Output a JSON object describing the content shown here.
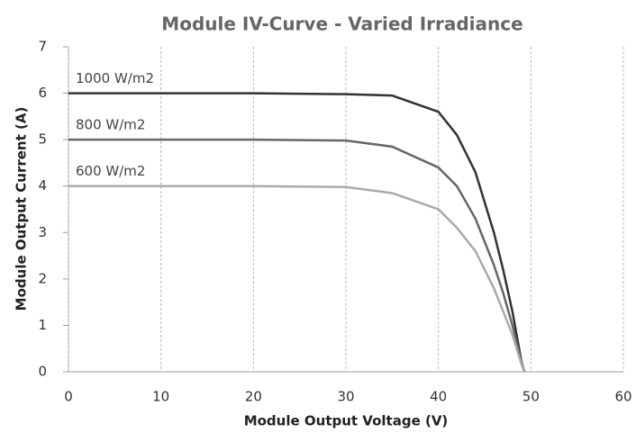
{
  "chart_data": {
    "type": "line",
    "title": "Module IV-Curve - Varied Irradiance",
    "x_label": "Module Output Voltage (V)",
    "y_label": "Module Output Current (A)",
    "x": [
      0,
      10,
      20,
      30,
      35,
      40,
      42,
      44,
      46,
      47,
      48,
      49,
      49.3
    ],
    "series": [
      {
        "name": "1000 W/m2",
        "color": "#333333",
        "values": [
          6,
          6,
          6,
          5.98,
          5.95,
          5.6,
          5.1,
          4.3,
          3.0,
          2.2,
          1.3,
          0.2,
          0
        ]
      },
      {
        "name": "800 W/m2",
        "color": "#666666",
        "values": [
          5,
          5,
          5,
          4.98,
          4.85,
          4.4,
          4.0,
          3.3,
          2.3,
          1.7,
          1.0,
          0.2,
          0
        ]
      },
      {
        "name": "600 W/m2",
        "color": "#aaaaaa",
        "values": [
          4,
          4,
          4,
          3.98,
          3.85,
          3.5,
          3.1,
          2.6,
          1.8,
          1.3,
          0.8,
          0.15,
          0
        ]
      }
    ],
    "xlim": [
      0,
      60
    ],
    "xticks": [
      0,
      10,
      20,
      30,
      40,
      50,
      60
    ],
    "ylim": [
      0,
      7
    ],
    "yticks": [
      0,
      1,
      2,
      3,
      4,
      5,
      6,
      7
    ],
    "grid": "x"
  }
}
